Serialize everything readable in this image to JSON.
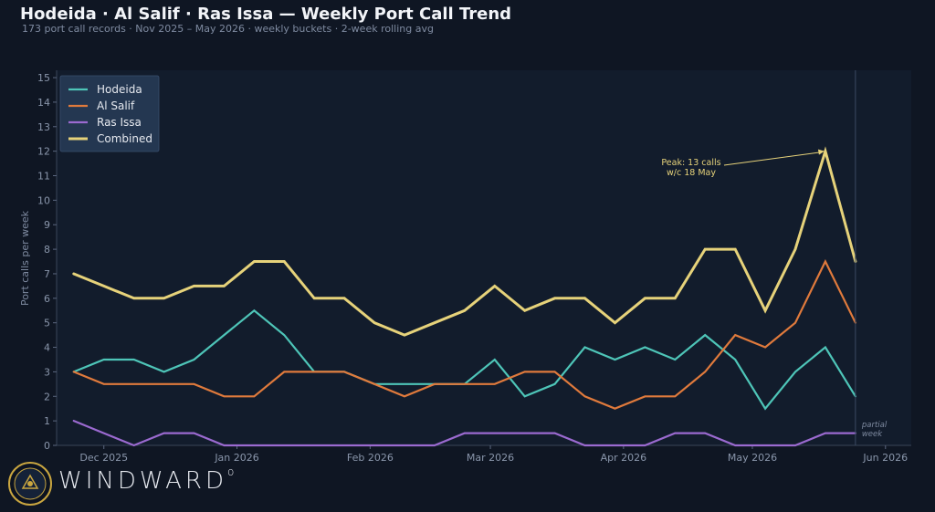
{
  "header": {
    "title": "Hodeida · Al Salif · Ras Issa — Weekly Port Call Trend",
    "subtitle": "173 port call records  ·  Nov 2025 – May 2026  ·  weekly buckets  ·  2-week rolling avg"
  },
  "brand": {
    "name": "WINDWARD",
    "mark": "o"
  },
  "colors": {
    "background": "#0f1623",
    "plot_bg": "#121c2c",
    "hodeida": "#4ec5b8",
    "al_salif": "#e07a3c",
    "ras_issa": "#9b6ad0",
    "combined": "#e6d27a"
  },
  "chart_data": {
    "type": "line",
    "title": "Hodeida · Al Salif · Ras Issa — Weekly Port Call Trend",
    "ylabel": "Port calls per week",
    "xlabel": "",
    "ylim": [
      0,
      15.3
    ],
    "xlim": [
      "2025-11-20",
      "2026-06-07"
    ],
    "yticks": [
      0,
      1,
      2,
      3,
      4,
      5,
      6,
      7,
      8,
      9,
      10,
      11,
      12,
      13,
      14,
      15
    ],
    "xticks": [
      {
        "date": "2025-12-01",
        "label": "Dec 2025"
      },
      {
        "date": "2026-01-01",
        "label": "Jan 2026"
      },
      {
        "date": "2026-02-01",
        "label": "Feb 2026"
      },
      {
        "date": "2026-03-01",
        "label": "Mar 2026"
      },
      {
        "date": "2026-04-01",
        "label": "Apr 2026"
      },
      {
        "date": "2026-05-01",
        "label": "May 2026"
      },
      {
        "date": "2026-06-01",
        "label": "Jun 2026"
      }
    ],
    "grid": false,
    "legend_position": "top-left",
    "x": [
      "2025-11-24",
      "2025-12-01",
      "2025-12-08",
      "2025-12-15",
      "2025-12-22",
      "2025-12-29",
      "2026-01-05",
      "2026-01-12",
      "2026-01-19",
      "2026-01-26",
      "2026-02-02",
      "2026-02-09",
      "2026-02-16",
      "2026-02-23",
      "2026-03-02",
      "2026-03-09",
      "2026-03-16",
      "2026-03-23",
      "2026-03-30",
      "2026-04-06",
      "2026-04-13",
      "2026-04-20",
      "2026-04-27",
      "2026-05-04",
      "2026-05-11",
      "2026-05-18",
      "2026-05-25"
    ],
    "series": [
      {
        "name": "Hodeida",
        "color": "#4ec5b8",
        "values": [
          3,
          3.5,
          3.5,
          3,
          3.5,
          4.5,
          5.5,
          4.5,
          3,
          3,
          2.5,
          2.5,
          2.5,
          2.5,
          3.5,
          2,
          2.5,
          4,
          3.5,
          4,
          3.5,
          4.5,
          3.5,
          1.5,
          3,
          4,
          2
        ]
      },
      {
        "name": "Al Salif",
        "color": "#e07a3c",
        "values": [
          3,
          2.5,
          2.5,
          2.5,
          2.5,
          2,
          2,
          3,
          3,
          3,
          2.5,
          2,
          2.5,
          2.5,
          2.5,
          3,
          3,
          2,
          1.5,
          2,
          2,
          3,
          4.5,
          4,
          5,
          7.5,
          5
        ]
      },
      {
        "name": "Ras Issa",
        "color": "#9b6ad0",
        "values": [
          1,
          0.5,
          0,
          0.5,
          0.5,
          0,
          0,
          0,
          0,
          0,
          0,
          0,
          0,
          0.5,
          0.5,
          0.5,
          0.5,
          0,
          0,
          0,
          0.5,
          0.5,
          0,
          0,
          0,
          0.5,
          0.5
        ]
      },
      {
        "name": "Combined",
        "color": "#e6d27a",
        "values": [
          7,
          6.5,
          6,
          6,
          6.5,
          6.5,
          7.5,
          7.5,
          6,
          6,
          5,
          4.5,
          5,
          5.5,
          6.5,
          5.5,
          6,
          6,
          5,
          6,
          6,
          8,
          8,
          5.5,
          8,
          12,
          7.5
        ]
      }
    ],
    "annotations": [
      {
        "text_lines": [
          "Peak: 13 calls",
          "w/c 18 May"
        ],
        "target_x": "2026-05-18",
        "target_y": 12
      },
      {
        "text_lines": [
          "partial",
          "week"
        ],
        "x": "2026-05-28"
      }
    ]
  }
}
